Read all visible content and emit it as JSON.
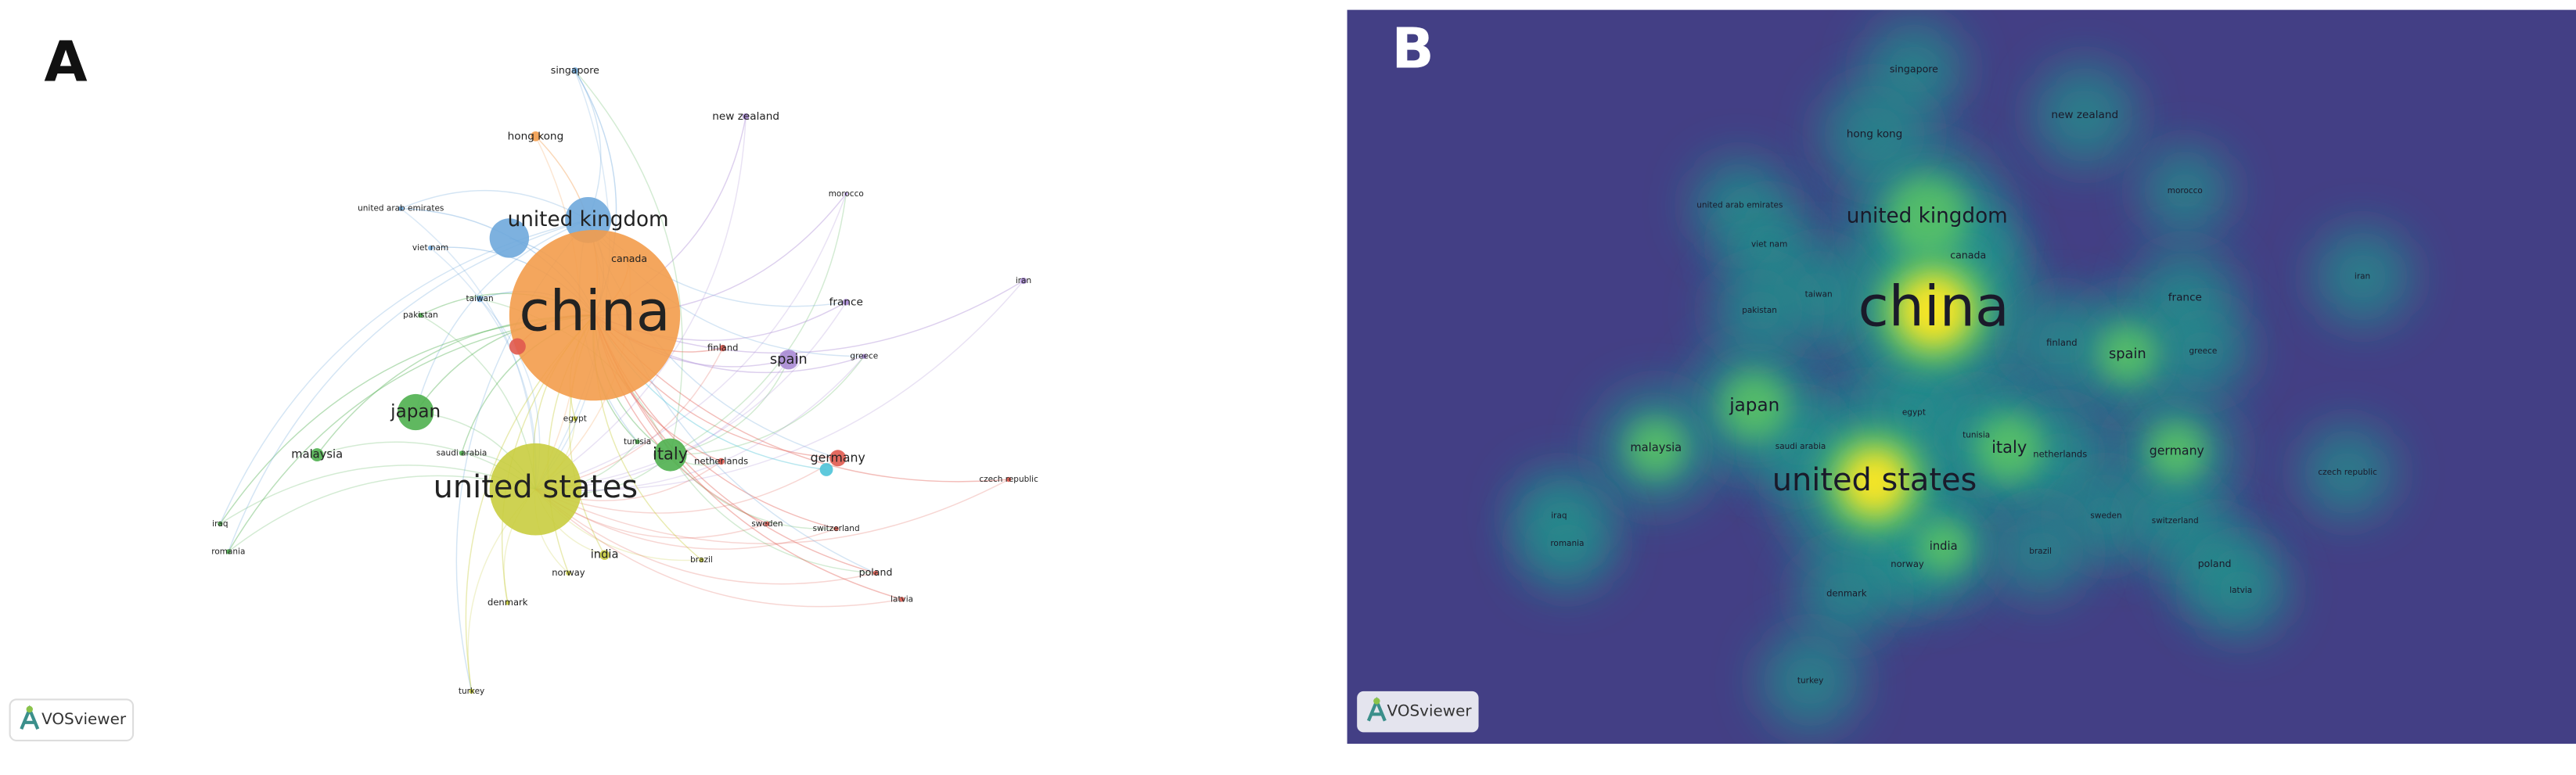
{
  "panels": [
    {
      "label": "A",
      "logo": "VOSviewer",
      "nodes": [
        "china",
        "united states",
        "united kingdom",
        "japan",
        "italy",
        "spain",
        "germany",
        "malaysia",
        "india",
        "singapore",
        "hong kong",
        "new zealand",
        "united arab emirates",
        "morocco",
        "viet nam",
        "canada",
        "iran",
        "taiwan",
        "france",
        "pakistan",
        "finland",
        "greece",
        "egypt",
        "saudi arabia",
        "tunisia",
        "netherlands",
        "czech republic",
        "iraq",
        "sweden",
        "switzerland",
        "romania",
        "norway",
        "brazil",
        "poland",
        "denmark",
        "latvia",
        "turkey"
      ]
    },
    {
      "label": "B",
      "logo": "VOSviewer",
      "nodes": [
        "china",
        "united states",
        "united kingdom",
        "japan",
        "italy",
        "spain",
        "germany",
        "malaysia",
        "india",
        "singapore",
        "hong kong",
        "new zealand",
        "united arab emirates",
        "morocco",
        "viet nam",
        "canada",
        "iran",
        "taiwan",
        "france",
        "pakistan",
        "finland",
        "greece",
        "egypt",
        "saudi arabia",
        "tunisia",
        "netherlands",
        "czech republic",
        "iraq",
        "sweden",
        "switzerland",
        "romania",
        "norway",
        "brazil",
        "poland",
        "denmark",
        "latvia",
        "turkey"
      ]
    }
  ]
}
